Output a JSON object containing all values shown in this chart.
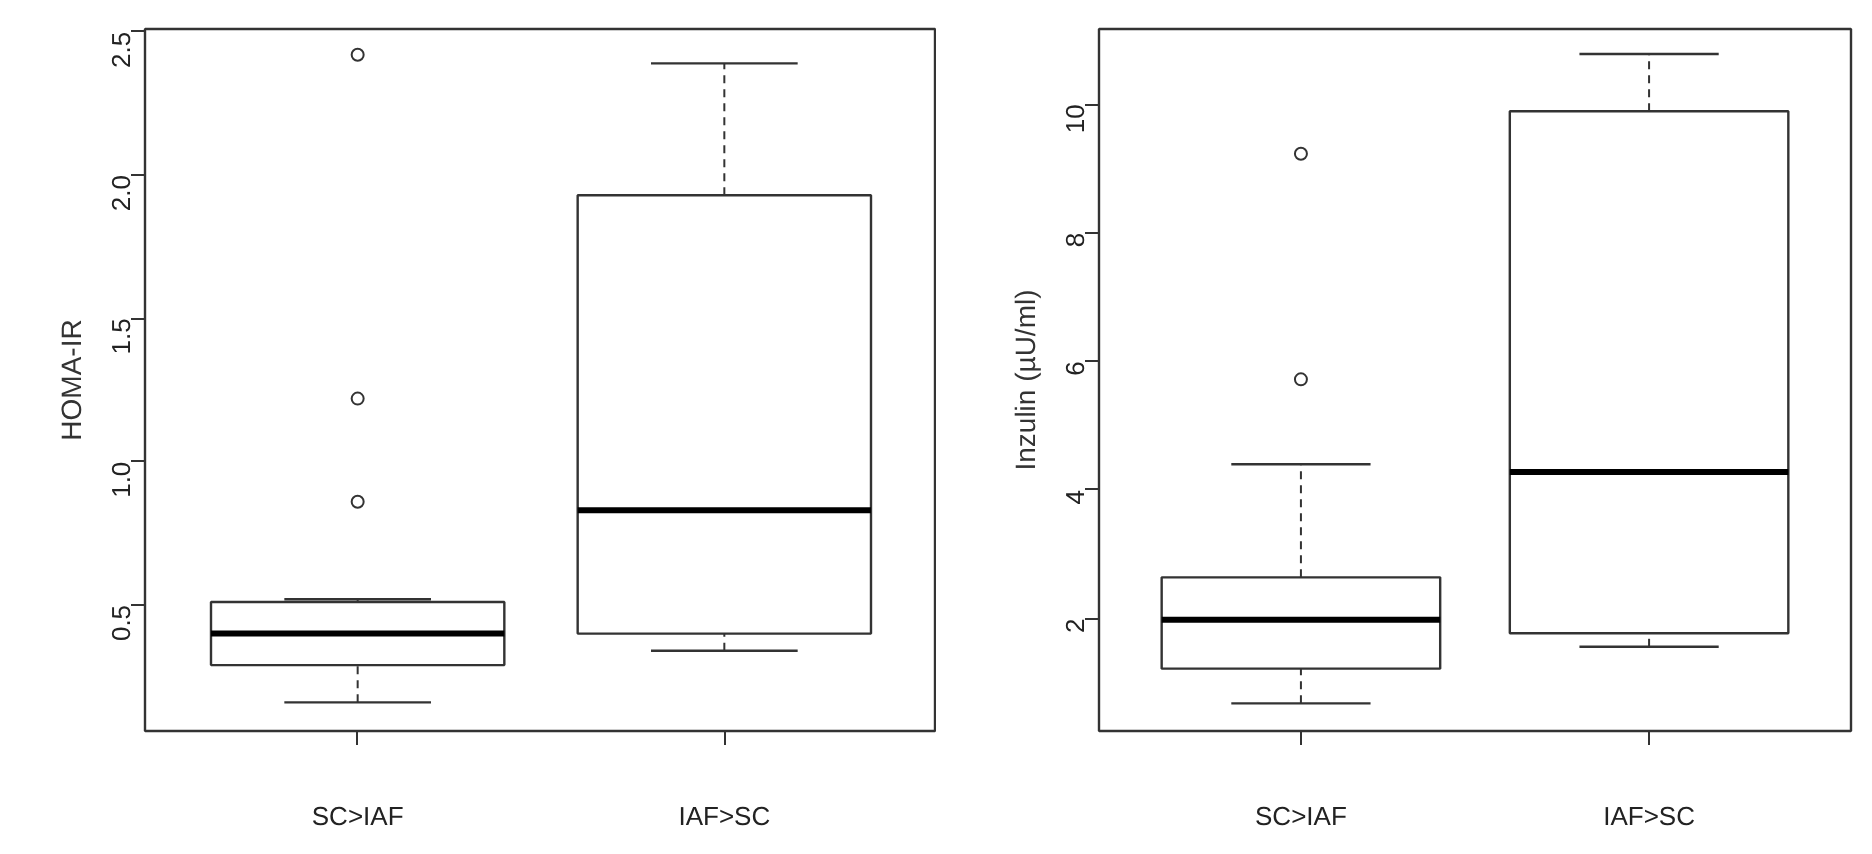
{
  "chart_data": [
    {
      "type": "box",
      "ylabel": "HOMA-IR",
      "categories": [
        "SC>IAF",
        "IAF>SC"
      ],
      "ylim": [
        0.06,
        2.51
      ],
      "yticks": [
        0.5,
        {
          "value": 1,
          "label": "1.0"
        },
        1.5,
        {
          "value": 2,
          "label": "2.0"
        },
        2.5
      ],
      "grid": false,
      "boxes": [
        {
          "low": 0.16,
          "q1": 0.29,
          "median": 0.4,
          "q3": 0.51,
          "high": 0.52,
          "outliers": [
            2.42,
            1.22,
            0.86
          ]
        },
        {
          "low": 0.34,
          "q1": 0.4,
          "median": 0.83,
          "q3": 1.93,
          "high": 2.39
        }
      ]
    },
    {
      "type": "box",
      "ylabel": "Inzulin (µU/ml)",
      "categories": [
        "SC>IAF",
        "IAF>SC"
      ],
      "ylim": [
        0.25,
        11.17
      ],
      "yticks": [
        2,
        4,
        6,
        8,
        10
      ],
      "grid": false,
      "boxes": [
        {
          "low": 0.68,
          "q1": 1.22,
          "median": 1.98,
          "q3": 2.64,
          "high": 4.4,
          "outliers": [
            9.23,
            5.72
          ]
        },
        {
          "low": 1.56,
          "q1": 1.77,
          "median": 4.28,
          "q3": 9.89,
          "high": 10.78
        }
      ]
    }
  ]
}
